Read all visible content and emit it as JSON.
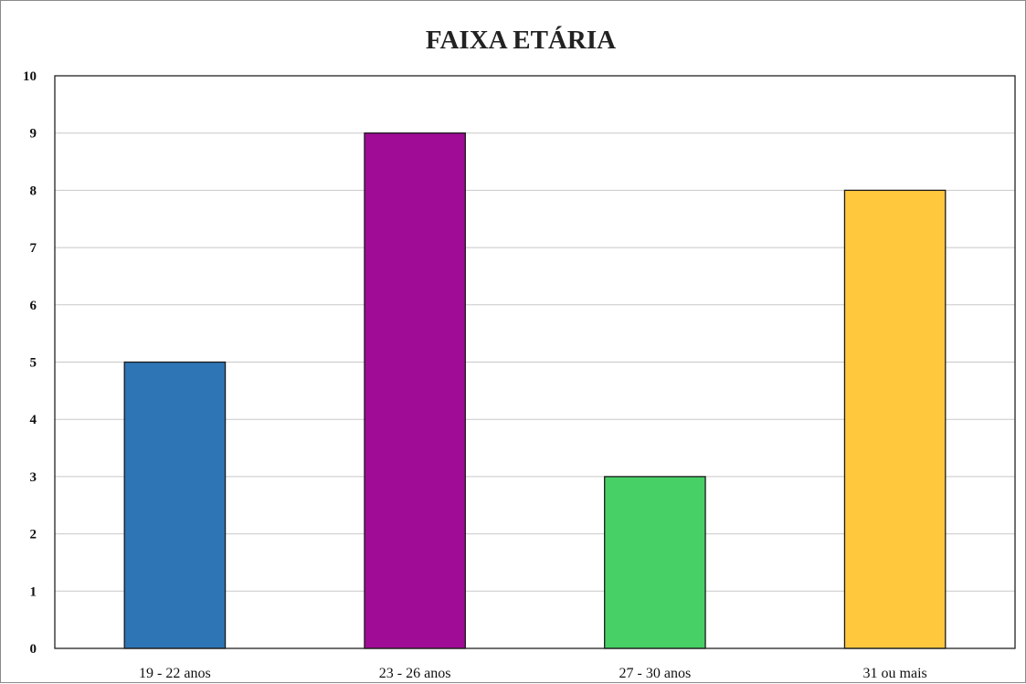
{
  "chart_data": {
    "type": "bar",
    "title": "FAIXA ETÁRIA",
    "categories": [
      "19 - 22 anos",
      "23 - 26 anos",
      "27 - 30 anos",
      "31 ou mais"
    ],
    "values": [
      5,
      9,
      3,
      8
    ],
    "colors": [
      "#2e75b6",
      "#a00c96",
      "#47d065",
      "#ffc83d"
    ],
    "ylim": [
      0,
      10
    ],
    "yticks": [
      0,
      1,
      2,
      3,
      4,
      5,
      6,
      7,
      8,
      9,
      10
    ],
    "grid": true,
    "legend": "none",
    "xlabel": "",
    "ylabel": ""
  }
}
